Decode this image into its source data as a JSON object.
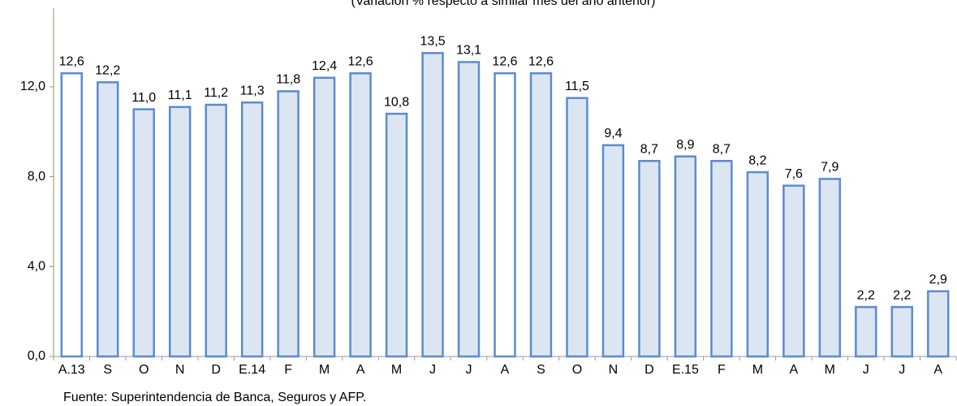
{
  "chart_data": {
    "type": "bar",
    "subtitle": "(Variación % respecto a similar mes del año anterior)",
    "source": "Fuente: Superintendencia de Banca, Seguros y AFP.",
    "categories": [
      "A.13",
      "S",
      "O",
      "N",
      "D",
      "E.14",
      "F",
      "M",
      "A",
      "M",
      "J",
      "J",
      "A",
      "S",
      "O",
      "N",
      "D",
      "E.15",
      "F",
      "M",
      "A",
      "M",
      "J",
      "J",
      "A"
    ],
    "values": [
      12.6,
      12.2,
      11.0,
      11.1,
      11.2,
      11.3,
      11.8,
      12.4,
      12.6,
      10.8,
      13.5,
      13.1,
      12.6,
      12.6,
      11.5,
      9.4,
      8.7,
      8.9,
      8.7,
      8.2,
      7.6,
      7.9,
      2.2,
      2.2,
      2.9
    ],
    "value_labels": [
      "12,6",
      "12,2",
      "11,0",
      "11,1",
      "11,2",
      "11,3",
      "11,8",
      "12,4",
      "12,6",
      "10,8",
      "13,5",
      "13,1",
      "12,6",
      "12,6",
      "11,5",
      "9,4",
      "8,7",
      "8,9",
      "8,7",
      "8,2",
      "7,6",
      "7,9",
      "2,2",
      "2,2",
      "2,9"
    ],
    "colors": [
      "#ffffff",
      "#dce6f2",
      "#dce6f2",
      "#dce6f2",
      "#dce6f2",
      "#dce6f2",
      "#dce6f2",
      "#dce6f2",
      "#dce6f2",
      "#dce6f2",
      "#dce6f2",
      "#dce6f2",
      "#ffffff",
      "#dce6f2",
      "#dce6f2",
      "#dce6f2",
      "#dce6f2",
      "#dce6f2",
      "#dce6f2",
      "#dce6f2",
      "#dce6f2",
      "#dce6f2",
      "#dce6f2",
      "#dce6f2",
      "#dce6f2"
    ],
    "edge_color": "#5b8bd0",
    "ylim": [
      0,
      15.5
    ],
    "yticks": [
      {
        "value": 0,
        "label": "0,0"
      },
      {
        "value": 4,
        "label": "4,0"
      },
      {
        "value": 8,
        "label": "8,0"
      },
      {
        "value": 12,
        "label": "12,0"
      }
    ]
  }
}
